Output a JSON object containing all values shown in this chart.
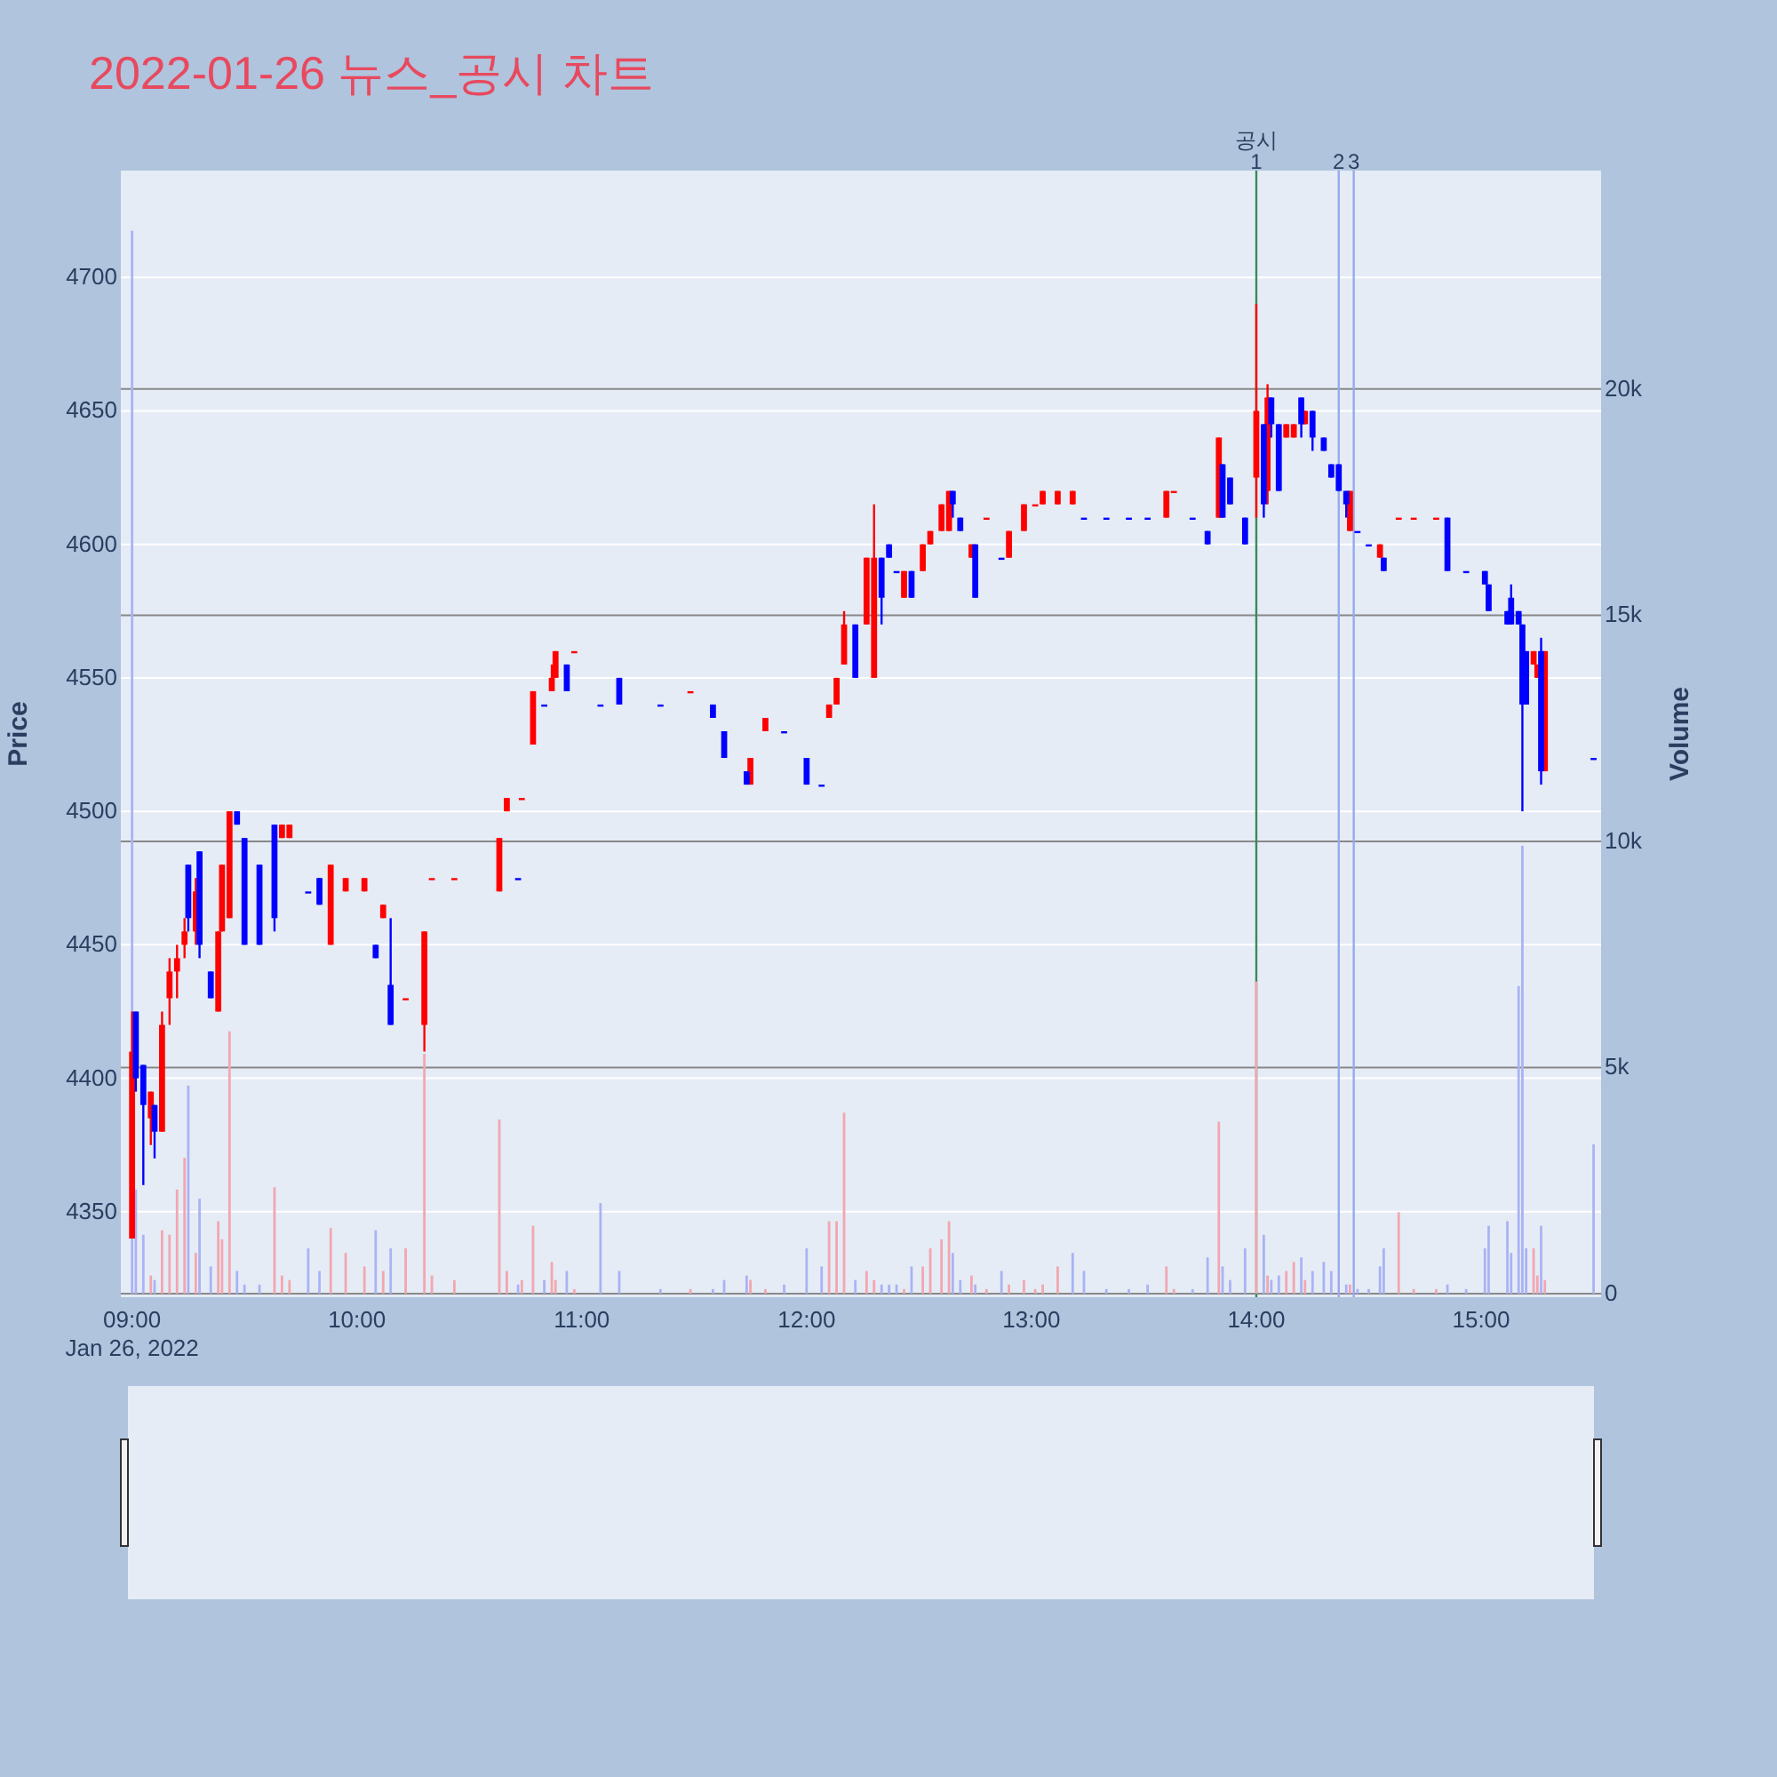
{
  "chart_data": {
    "type": "candlestick",
    "title": "2022-01-26 뉴스_공시 차트",
    "ylabel": "Price",
    "y2label": "Volume",
    "xlim": [
      "2022-01-26T08:57",
      "2022-01-26T15:32"
    ],
    "xticks": [
      {
        "value": "2022-01-26T09:00",
        "label": "09:00\nJan 26, 2022"
      },
      {
        "value": "2022-01-26T10:00",
        "label": "10:00"
      },
      {
        "value": "2022-01-26T11:00",
        "label": "11:00"
      },
      {
        "value": "2022-01-26T12:00",
        "label": "12:00"
      },
      {
        "value": "2022-01-26T13:00",
        "label": "13:00"
      },
      {
        "value": "2022-01-26T14:00",
        "label": "14:00"
      },
      {
        "value": "2022-01-26T15:00",
        "label": "15:00"
      }
    ],
    "ylim": [
      4318,
      4740
    ],
    "yticks": [
      4350,
      4400,
      4450,
      4500,
      4550,
      4600,
      4650,
      4700
    ],
    "y2lim": [
      -80,
      24830
    ],
    "y2ticks": [
      {
        "value": 0,
        "label": "0"
      },
      {
        "value": 5000,
        "label": "5k"
      },
      {
        "value": 10000,
        "label": "10k"
      },
      {
        "value": 15000,
        "label": "15k"
      },
      {
        "value": 20000,
        "label": "20k"
      }
    ],
    "grid": "y",
    "series": [
      {
        "type": "bar",
        "axis": "y2",
        "x": [
          "2022-01-26T09:00",
          "2022-01-26T09:01",
          "2022-01-26T09:03",
          "2022-01-26T09:05",
          "2022-01-26T09:06",
          "2022-01-26T09:08",
          "2022-01-26T09:10",
          "2022-01-26T09:12",
          "2022-01-26T09:14",
          "2022-01-26T09:15",
          "2022-01-26T09:17",
          "2022-01-26T09:18",
          "2022-01-26T09:21",
          "2022-01-26T09:23",
          "2022-01-26T09:24",
          "2022-01-26T09:26",
          "2022-01-26T09:28",
          "2022-01-26T09:30",
          "2022-01-26T09:34",
          "2022-01-26T09:38",
          "2022-01-26T09:40",
          "2022-01-26T09:42",
          "2022-01-26T09:47",
          "2022-01-26T09:50",
          "2022-01-26T09:53",
          "2022-01-26T09:57",
          "2022-01-26T10:02",
          "2022-01-26T10:05",
          "2022-01-26T10:07",
          "2022-01-26T10:09",
          "2022-01-26T10:13",
          "2022-01-26T10:18",
          "2022-01-26T10:20",
          "2022-01-26T10:26",
          "2022-01-26T10:38",
          "2022-01-26T10:40",
          "2022-01-26T10:43",
          "2022-01-26T10:44",
          "2022-01-26T10:47",
          "2022-01-26T10:50",
          "2022-01-26T10:52",
          "2022-01-26T10:53",
          "2022-01-26T10:56",
          "2022-01-26T10:58",
          "2022-01-26T11:05",
          "2022-01-26T11:10",
          "2022-01-26T11:21",
          "2022-01-26T11:29",
          "2022-01-26T11:35",
          "2022-01-26T11:38",
          "2022-01-26T11:44",
          "2022-01-26T11:45",
          "2022-01-26T11:49",
          "2022-01-26T11:54",
          "2022-01-26T12:00",
          "2022-01-26T12:04",
          "2022-01-26T12:06",
          "2022-01-26T12:08",
          "2022-01-26T12:10",
          "2022-01-26T12:13",
          "2022-01-26T12:16",
          "2022-01-26T12:18",
          "2022-01-26T12:20",
          "2022-01-26T12:22",
          "2022-01-26T12:24",
          "2022-01-26T12:26",
          "2022-01-26T12:28",
          "2022-01-26T12:31",
          "2022-01-26T12:33",
          "2022-01-26T12:36",
          "2022-01-26T12:38",
          "2022-01-26T12:39",
          "2022-01-26T12:41",
          "2022-01-26T12:44",
          "2022-01-26T12:45",
          "2022-01-26T12:48",
          "2022-01-26T12:52",
          "2022-01-26T12:54",
          "2022-01-26T12:58",
          "2022-01-26T13:01",
          "2022-01-26T13:03",
          "2022-01-26T13:07",
          "2022-01-26T13:11",
          "2022-01-26T13:14",
          "2022-01-26T13:20",
          "2022-01-26T13:26",
          "2022-01-26T13:31",
          "2022-01-26T13:36",
          "2022-01-26T13:38",
          "2022-01-26T13:43",
          "2022-01-26T13:47",
          "2022-01-26T13:50",
          "2022-01-26T13:51",
          "2022-01-26T13:53",
          "2022-01-26T13:57",
          "2022-01-26T14:00",
          "2022-01-26T14:02",
          "2022-01-26T14:03",
          "2022-01-26T14:04",
          "2022-01-26T14:06",
          "2022-01-26T14:08",
          "2022-01-26T14:10",
          "2022-01-26T14:12",
          "2022-01-26T14:13",
          "2022-01-26T14:15",
          "2022-01-26T14:18",
          "2022-01-26T14:20",
          "2022-01-26T14:24",
          "2022-01-26T14:25",
          "2022-01-26T14:27",
          "2022-01-26T14:30",
          "2022-01-26T14:33",
          "2022-01-26T14:34",
          "2022-01-26T14:38",
          "2022-01-26T14:42",
          "2022-01-26T14:48",
          "2022-01-26T14:51",
          "2022-01-26T14:56",
          "2022-01-26T15:01",
          "2022-01-26T15:02",
          "2022-01-26T15:07",
          "2022-01-26T15:08",
          "2022-01-26T15:10",
          "2022-01-26T15:11",
          "2022-01-26T15:12",
          "2022-01-26T15:14",
          "2022-01-26T15:15",
          "2022-01-26T15:16",
          "2022-01-26T15:17",
          "2022-01-26T15:30"
        ],
        "values": [
          23500,
          2300,
          1300,
          400,
          300,
          1400,
          1300,
          2300,
          3000,
          4600,
          900,
          2100,
          600,
          1600,
          1200,
          5800,
          500,
          200,
          200,
          2350,
          400,
          300,
          1000,
          500,
          1450,
          900,
          600,
          1400,
          500,
          1000,
          1000,
          5300,
          400,
          300,
          3850,
          500,
          200,
          300,
          1500,
          300,
          700,
          300,
          500,
          100,
          2000,
          500,
          100,
          100,
          100,
          300,
          400,
          300,
          100,
          200,
          1000,
          600,
          1600,
          1600,
          4000,
          300,
          500,
          300,
          200,
          200,
          200,
          100,
          600,
          600,
          1000,
          1200,
          1600,
          900,
          300,
          400,
          200,
          100,
          500,
          200,
          300,
          100,
          200,
          600,
          900,
          500,
          100,
          100,
          200,
          600,
          100,
          100,
          800,
          3800,
          600,
          300,
          1000,
          6900,
          1300,
          400,
          300,
          400,
          500,
          700,
          800,
          300,
          500,
          700,
          500,
          200,
          200,
          100,
          100,
          600,
          1000,
          1800,
          100,
          100,
          200,
          100,
          1000,
          1500,
          1600,
          900,
          6800,
          9900,
          1000,
          1000,
          400,
          1500,
          300,
          3300
        ],
        "colors": [
          "#aab3f4",
          "#aab3f4",
          "#aab3f4",
          "#f2a7b0",
          "#aab3f4",
          "#f2a7b0",
          "#f2a7b0",
          "#f2a7b0",
          "#f2a7b0",
          "#aab3f4",
          "#f2a7b0",
          "#aab3f4",
          "#aab3f4",
          "#f2a7b0",
          "#f2a7b0",
          "#f2a7b0",
          "#aab3f4",
          "#aab3f4",
          "#aab3f4",
          "#f2a7b0",
          "#f2a7b0",
          "#f2a7b0",
          "#aab3f4",
          "#aab3f4",
          "#f2a7b0",
          "#f2a7b0",
          "#f2a7b0",
          "#aab3f4",
          "#f2a7b0",
          "#aab3f4",
          "#f2a7b0",
          "#f2a7b0",
          "#f2a7b0",
          "#f2a7b0",
          "#f2a7b0",
          "#f2a7b0",
          "#aab3f4",
          "#f2a7b0",
          "#f2a7b0",
          "#aab3f4",
          "#f2a7b0",
          "#f2a7b0",
          "#aab3f4",
          "#f2a7b0",
          "#aab3f4",
          "#aab3f4",
          "#aab3f4",
          "#f2a7b0",
          "#aab3f4",
          "#aab3f4",
          "#aab3f4",
          "#f2a7b0",
          "#f2a7b0",
          "#aab3f4",
          "#aab3f4",
          "#aab3f4",
          "#f2a7b0",
          "#f2a7b0",
          "#f2a7b0",
          "#aab3f4",
          "#f2a7b0",
          "#f2a7b0",
          "#aab3f4",
          "#aab3f4",
          "#aab3f4",
          "#f2a7b0",
          "#aab3f4",
          "#f2a7b0",
          "#f2a7b0",
          "#f2a7b0",
          "#f2a7b0",
          "#aab3f4",
          "#aab3f4",
          "#f2a7b0",
          "#aab3f4",
          "#f2a7b0",
          "#aab3f4",
          "#f2a7b0",
          "#f2a7b0",
          "#f2a7b0",
          "#f2a7b0",
          "#f2a7b0",
          "#aab3f4",
          "#aab3f4",
          "#aab3f4",
          "#aab3f4",
          "#aab3f4",
          "#f2a7b0",
          "#f2a7b0",
          "#aab3f4",
          "#aab3f4",
          "#f2a7b0",
          "#aab3f4",
          "#aab3f4",
          "#aab3f4",
          "#f2a7b0",
          "#aab3f4",
          "#f2a7b0",
          "#aab3f4",
          "#aab3f4",
          "#f2a7b0",
          "#f2a7b0",
          "#aab3f4",
          "#f2a7b0",
          "#aab3f4",
          "#aab3f4",
          "#aab3f4",
          "#aab3f4",
          "#f2a7b0",
          "#aab3f4",
          "#aab3f4",
          "#aab3f4",
          "#aab3f4",
          "#f2a7b0",
          "#f2a7b0",
          "#f2a7b0",
          "#aab3f4",
          "#aab3f4",
          "#aab3f4",
          "#aab3f4",
          "#aab3f4",
          "#aab3f4",
          "#aab3f4",
          "#aab3f4",
          "#aab3f4",
          "#f2a7b0",
          "#f2a7b0",
          "#aab3f4",
          "#f2a7b0",
          "#aab3f4"
        ]
      },
      {
        "color": "#ff0000",
        "x": [
          "2022-01-26T09:00",
          "2022-01-26T09:05",
          "2022-01-26T09:08",
          "2022-01-26T09:10",
          "2022-01-26T09:12",
          "2022-01-26T09:14",
          "2022-01-26T09:17",
          "2022-01-26T09:23",
          "2022-01-26T09:24",
          "2022-01-26T09:26",
          "2022-01-26T09:40",
          "2022-01-26T09:42",
          "2022-01-26T09:53",
          "2022-01-26T09:57",
          "2022-01-26T10:02",
          "2022-01-26T10:07",
          "2022-01-26T10:13",
          "2022-01-26T10:18",
          "2022-01-26T10:20",
          "2022-01-26T10:26",
          "2022-01-26T10:38",
          "2022-01-26T10:40",
          "2022-01-26T10:44",
          "2022-01-26T10:47",
          "2022-01-26T10:52",
          "2022-01-26T10:53",
          "2022-01-26T10:58",
          "2022-01-26T11:29",
          "2022-01-26T11:45",
          "2022-01-26T11:49",
          "2022-01-26T12:06",
          "2022-01-26T12:08",
          "2022-01-26T12:10",
          "2022-01-26T12:16",
          "2022-01-26T12:18",
          "2022-01-26T12:26",
          "2022-01-26T12:31",
          "2022-01-26T12:33",
          "2022-01-26T12:36",
          "2022-01-26T12:38",
          "2022-01-26T12:44",
          "2022-01-26T12:48",
          "2022-01-26T12:54",
          "2022-01-26T12:58",
          "2022-01-26T13:01",
          "2022-01-26T13:03",
          "2022-01-26T13:07",
          "2022-01-26T13:11",
          "2022-01-26T13:36",
          "2022-01-26T13:38",
          "2022-01-26T13:50",
          "2022-01-26T14:00",
          "2022-01-26T14:03",
          "2022-01-26T14:08",
          "2022-01-26T14:10",
          "2022-01-26T14:13",
          "2022-01-26T14:25",
          "2022-01-26T14:33",
          "2022-01-26T14:38",
          "2022-01-26T14:42",
          "2022-01-26T14:48",
          "2022-01-26T15:14",
          "2022-01-26T15:15",
          "2022-01-26T15:17"
        ],
        "ohlc": [
          [
            4340,
            4425,
            4340,
            4410
          ],
          [
            4385,
            4395,
            4375,
            4395
          ],
          [
            4380,
            4425,
            4380,
            4420
          ],
          [
            4430,
            4445,
            4420,
            4440
          ],
          [
            4440,
            4450,
            4430,
            4445
          ],
          [
            4450,
            4460,
            4445,
            4455
          ],
          [
            4455,
            4475,
            4450,
            4470
          ],
          [
            4425,
            4455,
            4425,
            4455
          ],
          [
            4455,
            4480,
            4455,
            4480
          ],
          [
            4460,
            4500,
            4460,
            4500
          ],
          [
            4490,
            4495,
            4490,
            4495
          ],
          [
            4490,
            4495,
            4490,
            4495
          ],
          [
            4450,
            4480,
            4450,
            4480
          ],
          [
            4470,
            4475,
            4470,
            4475
          ],
          [
            4470,
            4475,
            4470,
            4475
          ],
          [
            4460,
            4465,
            4460,
            4465
          ],
          [
            4430,
            4430,
            4430,
            4430
          ],
          [
            4420,
            4455,
            4410,
            4455
          ],
          [
            4475,
            4475,
            4475,
            4475
          ],
          [
            4475,
            4475,
            4475,
            4475
          ],
          [
            4470,
            4490,
            4470,
            4490
          ],
          [
            4500,
            4505,
            4500,
            4505
          ],
          [
            4505,
            4505,
            4505,
            4505
          ],
          [
            4525,
            4545,
            4525,
            4545
          ],
          [
            4545,
            4555,
            4545,
            4550
          ],
          [
            4550,
            4560,
            4550,
            4560
          ],
          [
            4560,
            4560,
            4560,
            4560
          ],
          [
            4545,
            4545,
            4545,
            4545
          ],
          [
            4510,
            4520,
            4510,
            4520
          ],
          [
            4530,
            4535,
            4530,
            4535
          ],
          [
            4535,
            4540,
            4535,
            4540
          ],
          [
            4540,
            4550,
            4540,
            4550
          ],
          [
            4555,
            4575,
            4555,
            4570
          ],
          [
            4570,
            4595,
            4570,
            4595
          ],
          [
            4550,
            4615,
            4550,
            4595
          ],
          [
            4580,
            4590,
            4580,
            4590
          ],
          [
            4590,
            4600,
            4590,
            4600
          ],
          [
            4600,
            4605,
            4600,
            4605
          ],
          [
            4605,
            4615,
            4605,
            4615
          ],
          [
            4605,
            4620,
            4605,
            4620
          ],
          [
            4595,
            4600,
            4595,
            4600
          ],
          [
            4610,
            4610,
            4610,
            4610
          ],
          [
            4595,
            4605,
            4595,
            4605
          ],
          [
            4605,
            4615,
            4605,
            4615
          ],
          [
            4615,
            4615,
            4615,
            4615
          ],
          [
            4615,
            4620,
            4615,
            4620
          ],
          [
            4615,
            4620,
            4615,
            4620
          ],
          [
            4615,
            4620,
            4615,
            4620
          ],
          [
            4610,
            4620,
            4610,
            4620
          ],
          [
            4620,
            4620,
            4620,
            4620
          ],
          [
            4610,
            4640,
            4610,
            4640
          ],
          [
            4625,
            4690,
            4610,
            4650
          ],
          [
            4620,
            4660,
            4615,
            4655
          ],
          [
            4640,
            4645,
            4640,
            4645
          ],
          [
            4640,
            4645,
            4640,
            4645
          ],
          [
            4645,
            4650,
            4645,
            4650
          ],
          [
            4605,
            4620,
            4605,
            4620
          ],
          [
            4595,
            4600,
            4595,
            4600
          ],
          [
            4610,
            4610,
            4610,
            4610
          ],
          [
            4610,
            4610,
            4610,
            4610
          ],
          [
            4610,
            4610,
            4610,
            4610
          ],
          [
            4555,
            4560,
            4555,
            4560
          ],
          [
            4550,
            4555,
            4550,
            4555
          ],
          [
            4515,
            4560,
            4515,
            4560
          ]
        ]
      },
      {
        "color": "#0000ff",
        "x": [
          "2022-01-26T09:01",
          "2022-01-26T09:03",
          "2022-01-26T09:06",
          "2022-01-26T09:15",
          "2022-01-26T09:18",
          "2022-01-26T09:21",
          "2022-01-26T09:28",
          "2022-01-26T09:30",
          "2022-01-26T09:34",
          "2022-01-26T09:38",
          "2022-01-26T09:47",
          "2022-01-26T09:50",
          "2022-01-26T10:05",
          "2022-01-26T10:09",
          "2022-01-26T10:43",
          "2022-01-26T10:50",
          "2022-01-26T10:56",
          "2022-01-26T11:05",
          "2022-01-26T11:10",
          "2022-01-26T11:21",
          "2022-01-26T11:35",
          "2022-01-26T11:38",
          "2022-01-26T11:44",
          "2022-01-26T11:54",
          "2022-01-26T12:00",
          "2022-01-26T12:04",
          "2022-01-26T12:13",
          "2022-01-26T12:20",
          "2022-01-26T12:22",
          "2022-01-26T12:24",
          "2022-01-26T12:28",
          "2022-01-26T12:39",
          "2022-01-26T12:41",
          "2022-01-26T12:45",
          "2022-01-26T12:52",
          "2022-01-26T13:14",
          "2022-01-26T13:20",
          "2022-01-26T13:26",
          "2022-01-26T13:31",
          "2022-01-26T13:43",
          "2022-01-26T13:47",
          "2022-01-26T13:51",
          "2022-01-26T13:53",
          "2022-01-26T13:57",
          "2022-01-26T14:02",
          "2022-01-26T14:04",
          "2022-01-26T14:06",
          "2022-01-26T14:12",
          "2022-01-26T14:15",
          "2022-01-26T14:18",
          "2022-01-26T14:20",
          "2022-01-26T14:22",
          "2022-01-26T14:24",
          "2022-01-26T14:27",
          "2022-01-26T14:30",
          "2022-01-26T14:34",
          "2022-01-26T14:51",
          "2022-01-26T14:56",
          "2022-01-26T15:01",
          "2022-01-26T15:02",
          "2022-01-26T15:07",
          "2022-01-26T15:08",
          "2022-01-26T15:10",
          "2022-01-26T15:11",
          "2022-01-26T15:12",
          "2022-01-26T15:16",
          "2022-01-26T15:30"
        ],
        "ohlc": [
          [
            4425,
            4425,
            4395,
            4400
          ],
          [
            4405,
            4405,
            4360,
            4390
          ],
          [
            4390,
            4390,
            4370,
            4380
          ],
          [
            4480,
            4480,
            4455,
            4460
          ],
          [
            4485,
            4485,
            4445,
            4450
          ],
          [
            4440,
            4440,
            4430,
            4430
          ],
          [
            4500,
            4500,
            4495,
            4495
          ],
          [
            4490,
            4490,
            4450,
            4450
          ],
          [
            4480,
            4480,
            4450,
            4450
          ],
          [
            4495,
            4495,
            4455,
            4460
          ],
          [
            4470,
            4470,
            4470,
            4470
          ],
          [
            4475,
            4475,
            4465,
            4465
          ],
          [
            4450,
            4450,
            4445,
            4445
          ],
          [
            4435,
            4460,
            4420,
            4420
          ],
          [
            4475,
            4475,
            4475,
            4475
          ],
          [
            4540,
            4540,
            4540,
            4540
          ],
          [
            4555,
            4555,
            4545,
            4545
          ],
          [
            4540,
            4540,
            4540,
            4540
          ],
          [
            4550,
            4550,
            4540,
            4540
          ],
          [
            4540,
            4540,
            4540,
            4540
          ],
          [
            4540,
            4540,
            4535,
            4535
          ],
          [
            4530,
            4530,
            4520,
            4520
          ],
          [
            4515,
            4515,
            4510,
            4510
          ],
          [
            4530,
            4530,
            4530,
            4530
          ],
          [
            4520,
            4520,
            4510,
            4510
          ],
          [
            4510,
            4510,
            4510,
            4510
          ],
          [
            4570,
            4570,
            4550,
            4550
          ],
          [
            4595,
            4595,
            4570,
            4580
          ],
          [
            4600,
            4600,
            4595,
            4595
          ],
          [
            4590,
            4590,
            4590,
            4590
          ],
          [
            4590,
            4590,
            4580,
            4580
          ],
          [
            4620,
            4620,
            4610,
            4615
          ],
          [
            4610,
            4610,
            4605,
            4605
          ],
          [
            4600,
            4600,
            4580,
            4580
          ],
          [
            4595,
            4595,
            4595,
            4595
          ],
          [
            4610,
            4610,
            4610,
            4610
          ],
          [
            4610,
            4610,
            4610,
            4610
          ],
          [
            4610,
            4610,
            4610,
            4610
          ],
          [
            4610,
            4610,
            4610,
            4610
          ],
          [
            4610,
            4610,
            4610,
            4610
          ],
          [
            4605,
            4605,
            4600,
            4600
          ],
          [
            4630,
            4630,
            4610,
            4610
          ],
          [
            4625,
            4625,
            4615,
            4615
          ],
          [
            4610,
            4610,
            4600,
            4600
          ],
          [
            4645,
            4645,
            4610,
            4615
          ],
          [
            4655,
            4655,
            4640,
            4645
          ],
          [
            4645,
            4645,
            4620,
            4620
          ],
          [
            4655,
            4655,
            4640,
            4645
          ],
          [
            4650,
            4650,
            4635,
            4640
          ],
          [
            4640,
            4640,
            4635,
            4635
          ],
          [
            4630,
            4630,
            4625,
            4625
          ],
          [
            4630,
            4630,
            4620,
            4620
          ],
          [
            4620,
            4620,
            4610,
            4615
          ],
          [
            4605,
            4605,
            4605,
            4605
          ],
          [
            4600,
            4600,
            4600,
            4600
          ],
          [
            4595,
            4595,
            4590,
            4590
          ],
          [
            4610,
            4610,
            4590,
            4590
          ],
          [
            4590,
            4590,
            4590,
            4590
          ],
          [
            4590,
            4590,
            4585,
            4585
          ],
          [
            4585,
            4585,
            4575,
            4575
          ],
          [
            4575,
            4575,
            4570,
            4570
          ],
          [
            4580,
            4585,
            4570,
            4570
          ],
          [
            4575,
            4575,
            4570,
            4570
          ],
          [
            4570,
            4570,
            4500,
            4540
          ],
          [
            4560,
            4560,
            4540,
            4540
          ],
          [
            4560,
            4565,
            4510,
            4515
          ],
          [
            4520,
            4520,
            4520,
            4520
          ]
        ]
      }
    ],
    "ref_lines": [
      {
        "axis": "x",
        "value": "2022-01-26T14:00",
        "label": "1",
        "color": "#3a8a5a"
      },
      {
        "axis": "x",
        "value": "2022-01-26T14:22",
        "label": "2",
        "color": "#9aa8f0"
      },
      {
        "axis": "x",
        "value": "2022-01-26T14:26",
        "label": "3",
        "color": "#9aa8f0"
      }
    ],
    "annotations": [
      {
        "text": "공시",
        "x": "2022-01-26T14:00",
        "y": 4740
      }
    ]
  }
}
